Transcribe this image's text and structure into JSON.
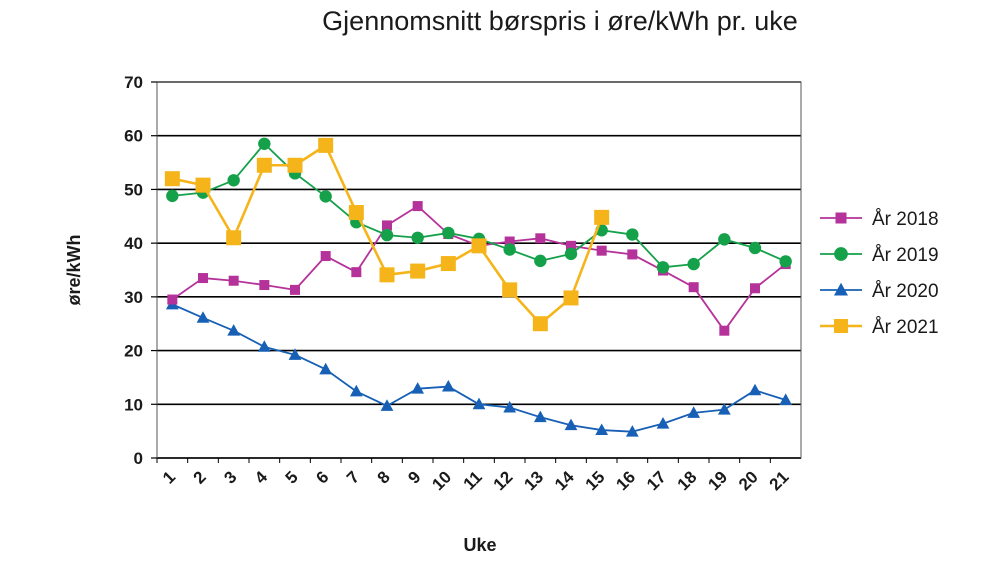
{
  "chart_data": {
    "type": "line",
    "title": "Gjennomsnitt børspris i øre/kWh pr. uke",
    "xlabel": "Uke",
    "ylabel": "øre/kWh",
    "categories": [
      "1",
      "2",
      "3",
      "4",
      "5",
      "6",
      "7",
      "8",
      "9",
      "10",
      "11",
      "12",
      "13",
      "14",
      "15",
      "16",
      "17",
      "18",
      "19",
      "20",
      "21"
    ],
    "ylim": [
      0,
      70
    ],
    "yticks": [
      0,
      10,
      20,
      30,
      40,
      50,
      60,
      70
    ],
    "grid": "horizontal",
    "legend_position": "right",
    "series": [
      {
        "name": "År 2018",
        "color": "#b5329a",
        "marker": "square",
        "values": [
          29.5,
          33.5,
          33.0,
          32.2,
          31.3,
          37.6,
          34.6,
          43.3,
          46.9,
          41.7,
          39.5,
          40.3,
          40.9,
          39.5,
          38.6,
          37.9,
          34.9,
          31.8,
          23.7,
          31.6,
          36.1
        ]
      },
      {
        "name": "År 2019",
        "color": "#15a04a",
        "marker": "circle",
        "values": [
          48.8,
          49.4,
          51.7,
          58.5,
          53.0,
          48.7,
          43.9,
          41.5,
          41.0,
          41.9,
          40.8,
          38.8,
          36.7,
          38.0,
          42.4,
          41.6,
          35.5,
          36.1,
          40.7,
          39.1,
          36.6
        ]
      },
      {
        "name": "År 2020",
        "color": "#1760b5",
        "marker": "triangle",
        "values": [
          28.6,
          26.1,
          23.7,
          20.7,
          19.2,
          16.5,
          12.4,
          9.7,
          12.9,
          13.3,
          10.0,
          9.4,
          7.6,
          6.1,
          5.2,
          4.9,
          6.4,
          8.4,
          9.0,
          12.6,
          10.8
        ]
      },
      {
        "name": "År 2021",
        "color": "#f5b41a",
        "marker": "square",
        "values": [
          52.0,
          50.8,
          41.0,
          54.5,
          54.5,
          58.2,
          45.7,
          34.1,
          34.8,
          36.2,
          39.5,
          31.3,
          25.0,
          29.8,
          44.8,
          null,
          null,
          null,
          null,
          null,
          null
        ]
      }
    ]
  }
}
